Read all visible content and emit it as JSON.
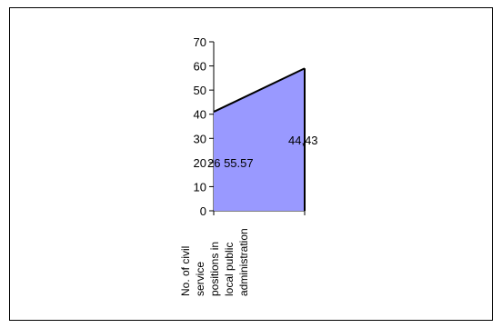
{
  "chart_data": {
    "type": "area",
    "categories": [
      "No. of civil service positions in local public administration",
      ""
    ],
    "series": [
      {
        "values": [
          41,
          59
        ]
      }
    ],
    "data_labels": [
      "26 55.57",
      "44,43"
    ],
    "ylim": [
      0,
      70
    ],
    "yticks": [
      0,
      10,
      20,
      30,
      40,
      50,
      60,
      70
    ],
    "category_label_lines": [
      "No. of civil",
      "service",
      "positions in",
      "local public",
      "administration"
    ],
    "fill_color": "#9999ff",
    "line_color": "#000000",
    "grid": false,
    "legend": "none"
  }
}
